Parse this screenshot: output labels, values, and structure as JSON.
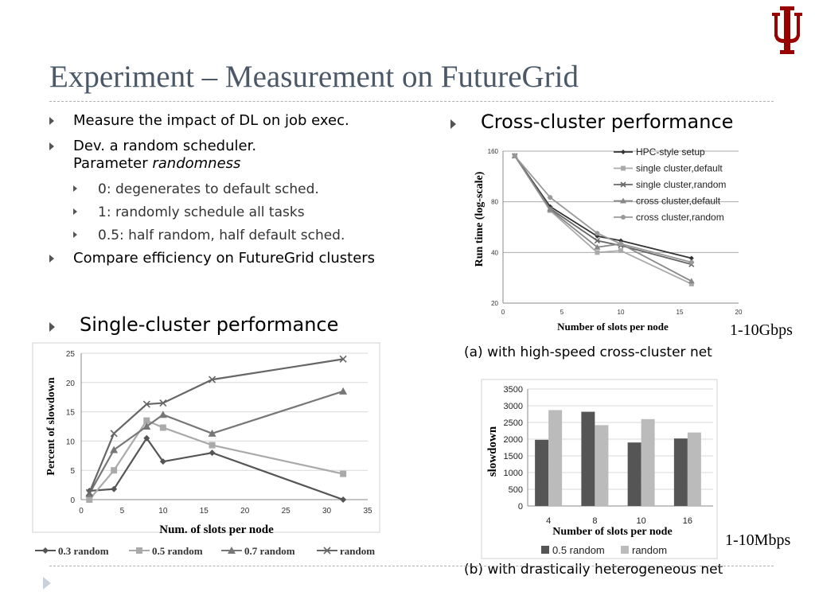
{
  "slide": {
    "title": "Experiment – Measurement on FutureGrid",
    "bullets": [
      "Measure the impact of DL on job exec.",
      "Dev. a random scheduler.",
      "Compare efficiency on FutureGrid clusters"
    ],
    "param_prefix": "Parameter ",
    "param_name": "randomness",
    "sub_bullets": [
      "0: degenerates to default sched.",
      "1: randomly schedule all tasks",
      "0.5: half random, half default sched."
    ],
    "single_heading": "Single-cluster performance",
    "cross_heading": "Cross-cluster performance",
    "caption_a": "(a) with high-speed cross-cluster net",
    "caption_b": "(b) with drastically heterogeneous net",
    "speed_a": "1-10Gbps",
    "speed_b": "1-10Mbps",
    "colors": {
      "title": "#4a5868",
      "logo": "#990000"
    }
  },
  "chart_data": [
    {
      "id": "single",
      "type": "line",
      "xlabel": "Num. of slots per node",
      "ylabel": "Percent of slowdown",
      "xlim": [
        0,
        35
      ],
      "ylim": [
        0,
        25
      ],
      "xticks": [
        0,
        5,
        10,
        15,
        20,
        25,
        30,
        35
      ],
      "yticks": [
        0,
        5,
        10,
        15,
        20,
        25
      ],
      "grid": true,
      "legend": "bottom",
      "series": [
        {
          "name": "0.3 random",
          "marker": "diamond",
          "color": "#555555",
          "x": [
            1,
            4,
            8,
            10,
            16,
            32
          ],
          "y": [
            1.5,
            1.8,
            10.5,
            6.5,
            8,
            0
          ]
        },
        {
          "name": "0.5 random",
          "marker": "square",
          "color": "#aaaaaa",
          "x": [
            1,
            4,
            8,
            10,
            16,
            32
          ],
          "y": [
            0,
            5,
            13.5,
            12.3,
            9.3,
            4.4
          ]
        },
        {
          "name": "0.7 random",
          "marker": "triangle",
          "color": "#777777",
          "x": [
            1,
            4,
            8,
            10,
            16,
            32
          ],
          "y": [
            1,
            8.5,
            12.5,
            14.5,
            11.3,
            18.5
          ]
        },
        {
          "name": "random",
          "marker": "x",
          "color": "#666666",
          "x": [
            1,
            4,
            8,
            10,
            16,
            32
          ],
          "y": [
            1.2,
            11.3,
            16.3,
            16.5,
            20.5,
            24
          ]
        }
      ]
    },
    {
      "id": "cross",
      "type": "line",
      "xlabel": "Number of slots per node",
      "ylabel": "Run time (log-scale)",
      "xlim": [
        0,
        20
      ],
      "ylim": [
        20,
        160
      ],
      "yscale": "log",
      "xticks": [
        0,
        5,
        10,
        15,
        20
      ],
      "yticks": [
        20,
        40,
        80,
        160
      ],
      "grid": true,
      "legend": "top-right",
      "series": [
        {
          "name": "HPC-style setup",
          "marker": "diamond",
          "color": "#333333",
          "x": [
            1,
            4,
            8,
            10,
            16
          ],
          "y": [
            150,
            75,
            50,
            47,
            37
          ]
        },
        {
          "name": "single cluster,default",
          "marker": "square",
          "color": "#aaaaaa",
          "x": [
            1,
            4,
            8,
            10,
            16
          ],
          "y": [
            150,
            71,
            40,
            41,
            26
          ]
        },
        {
          "name": "single cluster,random",
          "marker": "x",
          "color": "#666666",
          "x": [
            1,
            4,
            8,
            10,
            16
          ],
          "y": [
            150,
            73,
            47,
            44,
            34
          ]
        },
        {
          "name": "cross cluster,default",
          "marker": "triangle",
          "color": "#888888",
          "x": [
            1,
            4,
            8,
            10,
            16
          ],
          "y": [
            150,
            72,
            43,
            45,
            27
          ]
        },
        {
          "name": "cross cluster,random",
          "marker": "circle",
          "color": "#999999",
          "x": [
            1,
            4,
            8,
            10,
            16
          ],
          "y": [
            150,
            85,
            52,
            45,
            35
          ]
        }
      ]
    },
    {
      "id": "hetero",
      "type": "bar",
      "xlabel": "Number of slots per node",
      "ylabel": "slowdown",
      "categories": [
        "4",
        "8",
        "10",
        "16"
      ],
      "ylim": [
        0,
        3500
      ],
      "yticks": [
        0,
        500,
        1000,
        1500,
        2000,
        2500,
        3000,
        3500
      ],
      "grid": true,
      "legend": "bottom",
      "series": [
        {
          "name": "0.5 random",
          "color": "#555555",
          "values": [
            1980,
            2820,
            1900,
            2020
          ]
        },
        {
          "name": "random",
          "color": "#bbbbbb",
          "values": [
            2870,
            2420,
            2600,
            2200
          ]
        }
      ]
    }
  ]
}
